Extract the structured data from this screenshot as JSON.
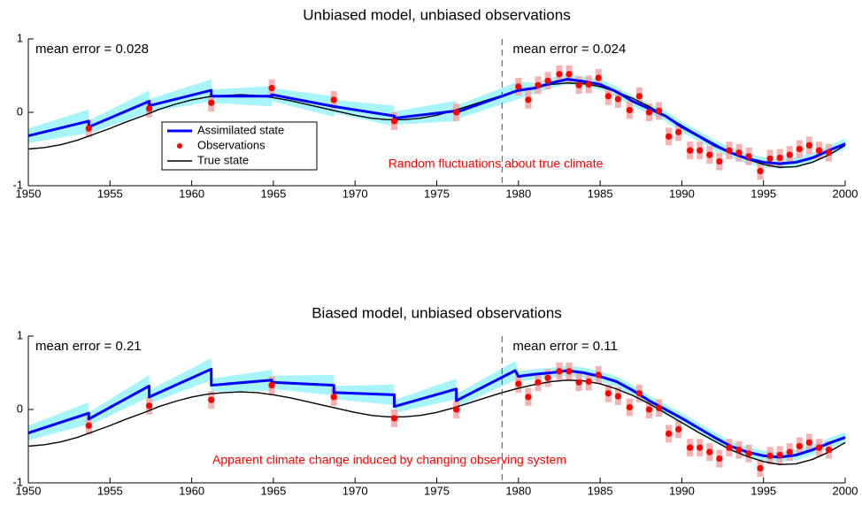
{
  "chart_data": [
    {
      "type": "line",
      "title": "Unbiased model, unbiased observations",
      "mean_error_left": "mean error = 0.028",
      "mean_error_right": "mean error = 0.024",
      "note": "Random fluctuations about true climate",
      "note_color": "#ff0000",
      "divider_x": 1979,
      "legend": "center-left",
      "xlim": [
        1950,
        2000
      ],
      "xticks": [
        1950,
        1955,
        1960,
        1965,
        1970,
        1975,
        1980,
        1985,
        1990,
        1995,
        2000
      ],
      "ylim": [
        -1,
        1
      ],
      "yticks": [
        -1,
        0,
        1
      ],
      "series": [
        {
          "name": "Assimilated state",
          "color": "#0000ff",
          "band_color": "#a8f4fb",
          "x": [
            1950,
            1953.7,
            1953.7,
            1957.4,
            1957.4,
            1961.2,
            1961.2,
            1964.9,
            1964.9,
            1968.7,
            1968.7,
            1972.4,
            1972.4,
            1976.2,
            1976.2,
            1980,
            1981,
            1982,
            1983,
            1984,
            1985,
            1986,
            1987,
            1988,
            1989,
            1990,
            1991,
            1992,
            1993,
            1994,
            1995,
            1996,
            1997,
            1998,
            1999,
            2000
          ],
          "values": [
            -0.32,
            -0.12,
            -0.2,
            0.15,
            0.09,
            0.3,
            0.22,
            0.22,
            0.24,
            0.08,
            0.08,
            -0.05,
            -0.08,
            0.02,
            0.0,
            0.3,
            0.33,
            0.4,
            0.45,
            0.42,
            0.38,
            0.28,
            0.15,
            0.05,
            -0.05,
            -0.2,
            -0.32,
            -0.45,
            -0.55,
            -0.63,
            -0.68,
            -0.7,
            -0.68,
            -0.62,
            -0.52,
            -0.43
          ],
          "lower": [
            -0.42,
            -0.28,
            -0.29,
            0.0,
            0.0,
            0.15,
            0.13,
            0.08,
            0.15,
            -0.06,
            -0.01,
            -0.19,
            -0.17,
            -0.12,
            -0.09,
            0.18,
            0.26,
            0.33,
            0.38,
            0.35,
            0.31,
            0.21,
            0.08,
            -0.02,
            -0.12,
            -0.27,
            -0.39,
            -0.52,
            -0.62,
            -0.7,
            -0.75,
            -0.77,
            -0.75,
            -0.69,
            -0.59,
            -0.5
          ],
          "upper": [
            -0.22,
            0.04,
            -0.11,
            0.3,
            0.18,
            0.45,
            0.31,
            0.36,
            0.33,
            0.22,
            0.17,
            0.09,
            0.01,
            0.16,
            0.09,
            0.42,
            0.4,
            0.47,
            0.52,
            0.49,
            0.45,
            0.35,
            0.22,
            0.12,
            0.02,
            -0.13,
            -0.25,
            -0.38,
            -0.48,
            -0.56,
            -0.61,
            -0.63,
            -0.61,
            -0.55,
            -0.45,
            -0.36
          ]
        },
        {
          "name": "Observations",
          "color": "#ff0000",
          "error_color": "#f4a3a3",
          "error": 0.12,
          "x": [
            1953.7,
            1957.4,
            1961.2,
            1964.9,
            1968.7,
            1972.4,
            1976.2,
            1980.0,
            1980.6,
            1981.2,
            1981.8,
            1982.5,
            1983.1,
            1983.7,
            1984.3,
            1984.9,
            1985.5,
            1986.1,
            1986.8,
            1987.4,
            1988.0,
            1988.6,
            1989.2,
            1989.8,
            1990.5,
            1991.1,
            1991.7,
            1992.3,
            1992.9,
            1993.5,
            1994.1,
            1994.8,
            1995.4,
            1996.0,
            1996.6,
            1997.2,
            1997.8,
            1998.4,
            1999.0
          ],
          "values": [
            -0.22,
            0.05,
            0.13,
            0.33,
            0.17,
            -0.12,
            0.0,
            0.35,
            0.17,
            0.37,
            0.43,
            0.52,
            0.52,
            0.37,
            0.38,
            0.47,
            0.22,
            0.18,
            0.03,
            0.22,
            0.0,
            0.02,
            -0.33,
            -0.27,
            -0.52,
            -0.52,
            -0.58,
            -0.67,
            -0.52,
            -0.55,
            -0.6,
            -0.8,
            -0.63,
            -0.62,
            -0.58,
            -0.5,
            -0.45,
            -0.52,
            -0.55
          ]
        },
        {
          "name": "True state",
          "color": "#000000",
          "x": [
            1950,
            1951,
            1952,
            1953,
            1954,
            1955,
            1956,
            1957,
            1958,
            1959,
            1960,
            1961,
            1962,
            1963,
            1964,
            1965,
            1966,
            1967,
            1968,
            1969,
            1970,
            1971,
            1972,
            1973,
            1974,
            1975,
            1976,
            1977,
            1978,
            1979,
            1980,
            1981,
            1982,
            1983,
            1984,
            1985,
            1986,
            1987,
            1988,
            1989,
            1990,
            1991,
            1992,
            1993,
            1994,
            1995,
            1996,
            1997,
            1998,
            1999,
            2000
          ],
          "values": [
            -0.5,
            -0.48,
            -0.44,
            -0.38,
            -0.3,
            -0.22,
            -0.13,
            -0.05,
            0.04,
            0.11,
            0.17,
            0.21,
            0.23,
            0.24,
            0.23,
            0.2,
            0.16,
            0.11,
            0.06,
            0.01,
            -0.04,
            -0.08,
            -0.1,
            -0.1,
            -0.08,
            -0.04,
            0.02,
            0.09,
            0.16,
            0.23,
            0.29,
            0.34,
            0.38,
            0.4,
            0.39,
            0.35,
            0.28,
            0.19,
            0.08,
            -0.05,
            -0.18,
            -0.31,
            -0.43,
            -0.55,
            -0.64,
            -0.71,
            -0.75,
            -0.74,
            -0.68,
            -0.58,
            -0.45
          ]
        }
      ]
    },
    {
      "type": "line",
      "title": "Biased model, unbiased observations",
      "mean_error_left": "mean error = 0.21",
      "mean_error_right": "mean error = 0.11",
      "note": "Apparent climate change induced by changing observing system",
      "note_color": "#ff0000",
      "divider_x": 1979,
      "xlim": [
        1950,
        2000
      ],
      "xticks": [
        1950,
        1955,
        1960,
        1965,
        1970,
        1975,
        1980,
        1985,
        1990,
        1995,
        2000
      ],
      "ylim": [
        -1,
        1
      ],
      "yticks": [
        -1,
        0,
        1
      ],
      "series": [
        {
          "name": "Assimilated state",
          "color": "#0000ff",
          "band_color": "#a8f4fb",
          "x": [
            1950,
            1953.7,
            1953.7,
            1957.4,
            1957.4,
            1961.2,
            1961.2,
            1964.9,
            1964.9,
            1968.7,
            1968.7,
            1972.4,
            1972.4,
            1976.2,
            1976.2,
            1979.8,
            1980,
            1981,
            1982,
            1983,
            1984,
            1985,
            1986,
            1987,
            1988,
            1989,
            1990,
            1991,
            1992,
            1993,
            1994,
            1995,
            1996,
            1997,
            1998,
            1999,
            2000
          ],
          "values": [
            -0.32,
            -0.05,
            -0.13,
            0.32,
            0.17,
            0.55,
            0.33,
            0.4,
            0.37,
            0.33,
            0.23,
            0.2,
            0.04,
            0.28,
            0.12,
            0.53,
            0.45,
            0.48,
            0.5,
            0.53,
            0.5,
            0.45,
            0.38,
            0.26,
            0.12,
            0.0,
            -0.12,
            -0.25,
            -0.38,
            -0.5,
            -0.58,
            -0.63,
            -0.65,
            -0.62,
            -0.55,
            -0.46,
            -0.38
          ],
          "lower": [
            -0.42,
            -0.2,
            -0.22,
            0.17,
            0.08,
            0.4,
            0.24,
            0.26,
            0.28,
            0.19,
            0.14,
            0.06,
            -0.05,
            0.14,
            0.03,
            0.4,
            0.38,
            0.41,
            0.43,
            0.46,
            0.43,
            0.38,
            0.31,
            0.19,
            0.05,
            -0.07,
            -0.19,
            -0.32,
            -0.45,
            -0.57,
            -0.65,
            -0.7,
            -0.72,
            -0.69,
            -0.62,
            -0.53,
            -0.45
          ],
          "upper": [
            -0.22,
            0.1,
            -0.04,
            0.47,
            0.26,
            0.7,
            0.42,
            0.54,
            0.46,
            0.47,
            0.32,
            0.34,
            0.13,
            0.42,
            0.21,
            0.66,
            0.52,
            0.55,
            0.57,
            0.6,
            0.57,
            0.52,
            0.45,
            0.33,
            0.19,
            0.07,
            -0.05,
            -0.18,
            -0.31,
            -0.43,
            -0.51,
            -0.56,
            -0.58,
            -0.55,
            -0.48,
            -0.39,
            -0.31
          ]
        },
        {
          "name": "Observations",
          "color": "#ff0000",
          "error_color": "#f4a3a3",
          "error": 0.12,
          "x": [
            1953.7,
            1957.4,
            1961.2,
            1964.9,
            1968.7,
            1972.4,
            1976.2,
            1980.0,
            1980.6,
            1981.2,
            1981.8,
            1982.5,
            1983.1,
            1983.7,
            1984.3,
            1984.9,
            1985.5,
            1986.1,
            1986.8,
            1987.4,
            1988.0,
            1988.6,
            1989.2,
            1989.8,
            1990.5,
            1991.1,
            1991.7,
            1992.3,
            1992.9,
            1993.5,
            1994.1,
            1994.8,
            1995.4,
            1996.0,
            1996.6,
            1997.2,
            1997.8,
            1998.4,
            1999.0
          ],
          "values": [
            -0.22,
            0.05,
            0.13,
            0.33,
            0.17,
            -0.12,
            0.0,
            0.35,
            0.17,
            0.37,
            0.43,
            0.52,
            0.52,
            0.37,
            0.38,
            0.47,
            0.22,
            0.18,
            0.03,
            0.22,
            0.0,
            0.02,
            -0.33,
            -0.27,
            -0.52,
            -0.52,
            -0.58,
            -0.67,
            -0.52,
            -0.55,
            -0.6,
            -0.8,
            -0.63,
            -0.62,
            -0.58,
            -0.5,
            -0.45,
            -0.52,
            -0.55
          ]
        },
        {
          "name": "True state",
          "color": "#000000",
          "x": [
            1950,
            1951,
            1952,
            1953,
            1954,
            1955,
            1956,
            1957,
            1958,
            1959,
            1960,
            1961,
            1962,
            1963,
            1964,
            1965,
            1966,
            1967,
            1968,
            1969,
            1970,
            1971,
            1972,
            1973,
            1974,
            1975,
            1976,
            1977,
            1978,
            1979,
            1980,
            1981,
            1982,
            1983,
            1984,
            1985,
            1986,
            1987,
            1988,
            1989,
            1990,
            1991,
            1992,
            1993,
            1994,
            1995,
            1996,
            1997,
            1998,
            1999,
            2000
          ],
          "values": [
            -0.5,
            -0.48,
            -0.44,
            -0.38,
            -0.3,
            -0.22,
            -0.13,
            -0.05,
            0.04,
            0.11,
            0.17,
            0.21,
            0.23,
            0.24,
            0.23,
            0.2,
            0.16,
            0.11,
            0.06,
            0.01,
            -0.04,
            -0.08,
            -0.1,
            -0.1,
            -0.08,
            -0.04,
            0.02,
            0.09,
            0.16,
            0.23,
            0.29,
            0.34,
            0.38,
            0.4,
            0.39,
            0.35,
            0.28,
            0.19,
            0.08,
            -0.05,
            -0.18,
            -0.31,
            -0.43,
            -0.55,
            -0.64,
            -0.71,
            -0.75,
            -0.74,
            -0.68,
            -0.58,
            -0.45
          ]
        }
      ]
    }
  ]
}
